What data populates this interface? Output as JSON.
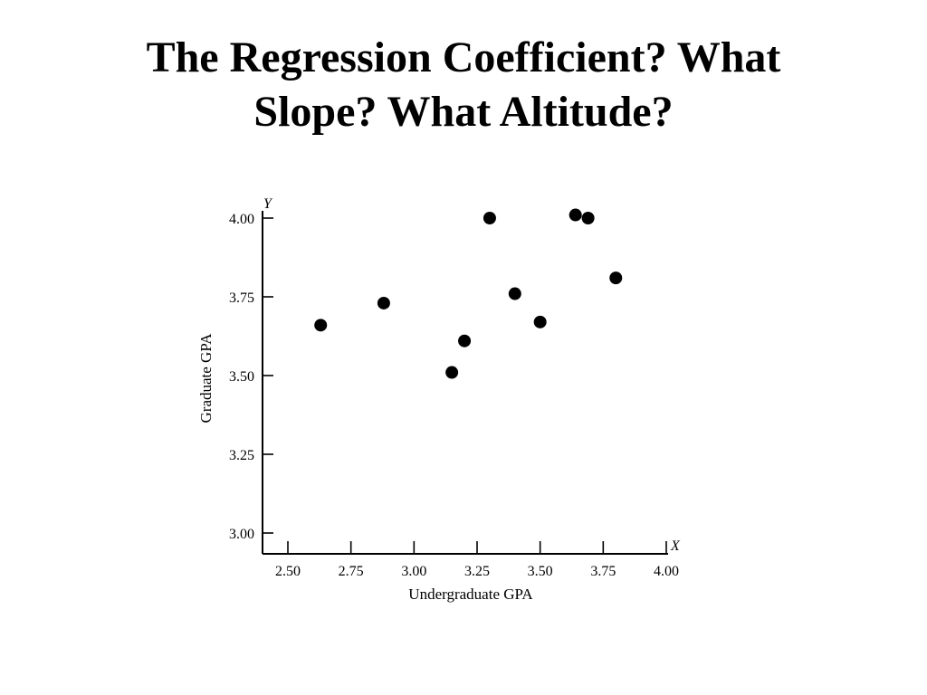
{
  "slide": {
    "title": "The Regression Coefficient? What Slope? What Altitude?"
  },
  "chart_data": {
    "type": "scatter",
    "title": "",
    "xlabel": "Undergraduate GPA",
    "ylabel": "Graduate GPA",
    "x_axis_letter": "X",
    "y_axis_letter": "Y",
    "xlim": [
      2.4,
      4.0
    ],
    "ylim": [
      2.95,
      4.0
    ],
    "xticks": [
      "2.50",
      "2.75",
      "3.00",
      "3.25",
      "3.50",
      "3.75",
      "4.00"
    ],
    "yticks": [
      "3.00",
      "3.25",
      "3.50",
      "3.75",
      "4.00"
    ],
    "grid": false,
    "points": [
      {
        "x": 2.63,
        "y": 3.66
      },
      {
        "x": 2.88,
        "y": 3.73
      },
      {
        "x": 3.15,
        "y": 3.51
      },
      {
        "x": 3.2,
        "y": 3.61
      },
      {
        "x": 3.3,
        "y": 4.0
      },
      {
        "x": 3.4,
        "y": 3.76
      },
      {
        "x": 3.5,
        "y": 3.67
      },
      {
        "x": 3.64,
        "y": 4.01
      },
      {
        "x": 3.69,
        "y": 4.0
      },
      {
        "x": 3.8,
        "y": 3.81
      }
    ]
  }
}
